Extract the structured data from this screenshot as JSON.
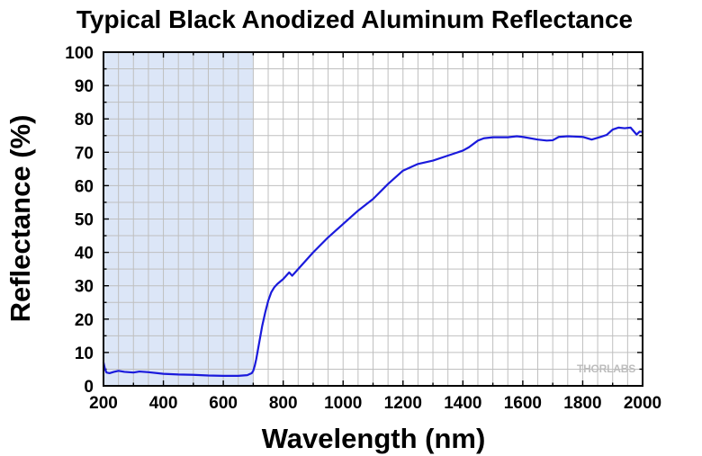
{
  "chart_data": {
    "type": "line",
    "title": "Typical Black Anodized Aluminum Reflectance",
    "xlabel": "Wavelength (nm)",
    "ylabel": "Reflectance (%)",
    "xlim": [
      200,
      2000
    ],
    "ylim": [
      0,
      100
    ],
    "x_ticks": [
      "200",
      "400",
      "600",
      "800",
      "1000",
      "1200",
      "1400",
      "1600",
      "1800",
      "2000"
    ],
    "y_ticks": [
      "0",
      "10",
      "20",
      "30",
      "40",
      "50",
      "60",
      "70",
      "80",
      "90",
      "100"
    ],
    "grid": true,
    "shaded_region": {
      "x_start": 200,
      "x_end": 700,
      "color": "#dce6f7"
    },
    "watermark": "THORLABS",
    "series": [
      {
        "color": "#1a1adc",
        "x": [
          200,
          205,
          210,
          220,
          235,
          250,
          270,
          300,
          320,
          350,
          400,
          450,
          500,
          550,
          600,
          650,
          680,
          695,
          700,
          705,
          710,
          720,
          730,
          740,
          750,
          760,
          770,
          780,
          800,
          820,
          830,
          840,
          850,
          870,
          900,
          950,
          1000,
          1050,
          1100,
          1150,
          1200,
          1250,
          1300,
          1350,
          1400,
          1420,
          1450,
          1470,
          1500,
          1550,
          1580,
          1600,
          1650,
          1680,
          1700,
          1720,
          1750,
          1800,
          1830,
          1860,
          1880,
          1900,
          1920,
          1940,
          1960,
          1980,
          1990,
          2000
        ],
        "y": [
          7,
          5,
          4,
          3.8,
          4.2,
          4.5,
          4.2,
          4.0,
          4.3,
          4.1,
          3.6,
          3.4,
          3.3,
          3.1,
          3.0,
          3.0,
          3.2,
          3.8,
          4.5,
          6,
          8,
          13,
          18,
          22,
          25.5,
          28,
          29.5,
          30.5,
          32,
          34,
          33,
          34,
          35,
          37,
          40,
          44.5,
          48.5,
          52.5,
          56,
          60.5,
          64.5,
          66.5,
          67.5,
          69,
          70.5,
          71.5,
          73.5,
          74.2,
          74.5,
          74.5,
          74.8,
          74.6,
          73.8,
          73.5,
          73.6,
          74.6,
          74.8,
          74.6,
          73.8,
          74.6,
          75.2,
          76.8,
          77.4,
          77.2,
          77.4,
          75.3,
          76.2,
          76.1
        ]
      }
    ]
  }
}
